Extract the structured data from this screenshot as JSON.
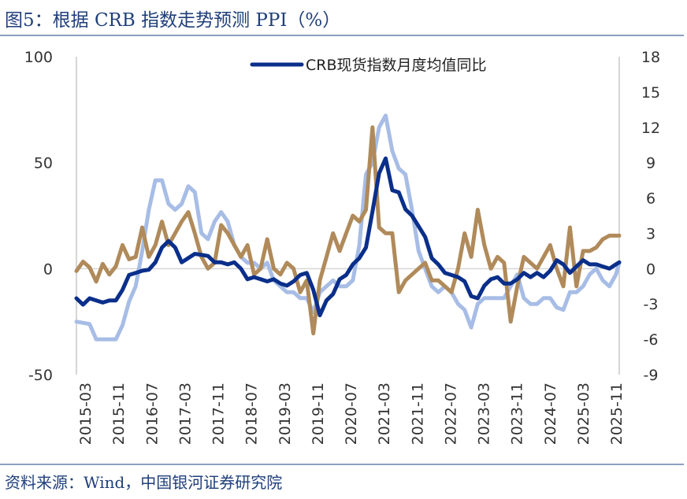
{
  "title": "图5：根据 CRB 指数走势预测 PPI（%）",
  "source": "资料来源：Wind，中国银河证券研究院",
  "colors": {
    "navy": "#0a2f8a",
    "lightblue": "#a7bde6",
    "tan": "#b08a5a",
    "axis": "#c8c8c8"
  },
  "chart_data": {
    "type": "line",
    "legend": [
      "CRB现货指数月度均值同比"
    ],
    "left_ylim": [
      -50,
      100
    ],
    "right_ylim": [
      -9,
      18
    ],
    "left_ticks": [
      "100",
      "50",
      "0",
      "-50"
    ],
    "right_ticks": [
      "18",
      "15",
      "12",
      "9",
      "6",
      "3",
      "0",
      "-3",
      "-6",
      "-9"
    ],
    "x_tick_labels": [
      "2015-03",
      "2015-11",
      "2016-07",
      "2017-03",
      "2017-11",
      "2018-07",
      "2019-03",
      "2019-11",
      "2020-07",
      "2021-03",
      "2021-11",
      "2022-07",
      "2023-03",
      "2023-11",
      "2024-07",
      "2025-03",
      "2025-11"
    ],
    "series": [
      {
        "name": "CRB现货指数月度均值同比",
        "axis": "left",
        "color": "#0a2f8a",
        "points": [
          [
            0,
            -14
          ],
          [
            2,
            -17
          ],
          [
            4,
            -14
          ],
          [
            8,
            -16
          ],
          [
            10,
            -15
          ],
          [
            12,
            -15
          ],
          [
            14,
            -10
          ],
          [
            16,
            -3
          ],
          [
            18,
            -2
          ],
          [
            20,
            -1
          ],
          [
            22,
            -0.5
          ],
          [
            24,
            3
          ],
          [
            26,
            10
          ],
          [
            28,
            13
          ],
          [
            30,
            10
          ],
          [
            32,
            3
          ],
          [
            34,
            5
          ],
          [
            36,
            7
          ],
          [
            40,
            6
          ],
          [
            42,
            3
          ],
          [
            44,
            3
          ],
          [
            46,
            2
          ],
          [
            48,
            3
          ],
          [
            50,
            0
          ],
          [
            52,
            -5
          ],
          [
            54,
            -4
          ],
          [
            56,
            -5
          ],
          [
            58,
            -6
          ],
          [
            60,
            -5
          ],
          [
            62,
            -7
          ],
          [
            64,
            -8
          ],
          [
            66,
            -6
          ],
          [
            68,
            -3
          ],
          [
            70,
            -2
          ],
          [
            72,
            -10
          ],
          [
            74,
            -22
          ],
          [
            76,
            -15
          ],
          [
            78,
            -12
          ],
          [
            80,
            -5
          ],
          [
            82,
            -3
          ],
          [
            84,
            2
          ],
          [
            86,
            5
          ],
          [
            88,
            10
          ],
          [
            90,
            27
          ],
          [
            92,
            45
          ],
          [
            94,
            52
          ],
          [
            96,
            37
          ],
          [
            98,
            36
          ],
          [
            100,
            28
          ],
          [
            102,
            25
          ],
          [
            104,
            20
          ],
          [
            106,
            15
          ],
          [
            108,
            5
          ],
          [
            110,
            2
          ],
          [
            112,
            -2
          ],
          [
            114,
            -3
          ],
          [
            116,
            -4
          ],
          [
            118,
            -6
          ],
          [
            120,
            -13
          ],
          [
            122,
            -14
          ],
          [
            124,
            -8
          ],
          [
            126,
            -5
          ],
          [
            128,
            -4
          ],
          [
            130,
            -7
          ],
          [
            132,
            -7
          ],
          [
            134,
            -5
          ],
          [
            136,
            -2
          ],
          [
            138,
            -4
          ],
          [
            140,
            -2
          ],
          [
            142,
            -4
          ],
          [
            144,
            -1
          ],
          [
            146,
            4
          ],
          [
            148,
            2
          ],
          [
            150,
            -2
          ],
          [
            152,
            1
          ],
          [
            154,
            4
          ],
          [
            156,
            2
          ],
          [
            158,
            2
          ],
          [
            160,
            1
          ],
          [
            162,
            0
          ],
          [
            164,
            2
          ],
          [
            165,
            3
          ]
        ]
      },
      {
        "name": "",
        "axis": "right",
        "color": "#a7bde6",
        "points": [
          [
            0,
            -4.5
          ],
          [
            4,
            -4.7
          ],
          [
            6,
            -6
          ],
          [
            10,
            -6
          ],
          [
            12,
            -6
          ],
          [
            14,
            -4.8
          ],
          [
            16,
            -2.8
          ],
          [
            18,
            -1.5
          ],
          [
            20,
            1.5
          ],
          [
            22,
            5
          ],
          [
            24,
            7.5
          ],
          [
            26,
            7.5
          ],
          [
            28,
            5.5
          ],
          [
            30,
            5
          ],
          [
            32,
            5.5
          ],
          [
            34,
            7
          ],
          [
            36,
            6.5
          ],
          [
            38,
            3
          ],
          [
            40,
            2.5
          ],
          [
            42,
            4
          ],
          [
            44,
            4.8
          ],
          [
            46,
            4
          ],
          [
            48,
            2
          ],
          [
            50,
            1
          ],
          [
            52,
            0.5
          ],
          [
            54,
            0.5
          ],
          [
            56,
            0
          ],
          [
            58,
            0.5
          ],
          [
            60,
            -1
          ],
          [
            62,
            -1.5
          ],
          [
            64,
            -2
          ],
          [
            66,
            -2
          ],
          [
            68,
            -2.5
          ],
          [
            70,
            -2.5
          ],
          [
            72,
            -3.7
          ],
          [
            74,
            -2
          ],
          [
            76,
            -1.5
          ],
          [
            78,
            -1
          ],
          [
            80,
            -1.5
          ],
          [
            82,
            -1.5
          ],
          [
            84,
            -1
          ],
          [
            86,
            2
          ],
          [
            88,
            8
          ],
          [
            90,
            9
          ],
          [
            92,
            12
          ],
          [
            94,
            13
          ],
          [
            96,
            10
          ],
          [
            98,
            8.5
          ],
          [
            100,
            8
          ],
          [
            102,
            5
          ],
          [
            104,
            1.5
          ],
          [
            106,
            0
          ],
          [
            108,
            -1.5
          ],
          [
            110,
            -2
          ],
          [
            112,
            -1.5
          ],
          [
            114,
            -2
          ],
          [
            116,
            -3
          ],
          [
            118,
            -3.5
          ],
          [
            120,
            -5
          ],
          [
            122,
            -3
          ],
          [
            124,
            -2.5
          ],
          [
            126,
            -2.5
          ],
          [
            128,
            -2.5
          ],
          [
            130,
            -2.5
          ],
          [
            132,
            -1.5
          ],
          [
            134,
            -0.5
          ],
          [
            136,
            -2.5
          ],
          [
            138,
            -3
          ],
          [
            140,
            -3
          ],
          [
            142,
            -2.5
          ],
          [
            144,
            -2.5
          ],
          [
            146,
            -3.3
          ],
          [
            148,
            -3.5
          ],
          [
            150,
            -2
          ],
          [
            152,
            -2
          ],
          [
            154,
            -1.5
          ],
          [
            156,
            -0.5
          ],
          [
            158,
            0
          ],
          [
            160,
            -1
          ],
          [
            162,
            -1.5
          ],
          [
            164,
            -0.5
          ],
          [
            165,
            0.5
          ]
        ]
      },
      {
        "name": "",
        "axis": "right",
        "color": "#b08a5a",
        "points": [
          [
            0,
            -0.2
          ],
          [
            2,
            0.6
          ],
          [
            4,
            0.1
          ],
          [
            6,
            -1.1
          ],
          [
            8,
            0.4
          ],
          [
            10,
            -0.5
          ],
          [
            12,
            0.2
          ],
          [
            14,
            2
          ],
          [
            16,
            0.8
          ],
          [
            18,
            1
          ],
          [
            20,
            3.5
          ],
          [
            22,
            1
          ],
          [
            24,
            2
          ],
          [
            26,
            4
          ],
          [
            28,
            2
          ],
          [
            30,
            3
          ],
          [
            32,
            4
          ],
          [
            34,
            4.8
          ],
          [
            36,
            3
          ],
          [
            38,
            1
          ],
          [
            40,
            0
          ],
          [
            42,
            0.5
          ],
          [
            44,
            3.7
          ],
          [
            46,
            3
          ],
          [
            48,
            2
          ],
          [
            50,
            1
          ],
          [
            52,
            2
          ],
          [
            54,
            -0.5
          ],
          [
            56,
            0
          ],
          [
            58,
            2.5
          ],
          [
            60,
            0
          ],
          [
            62,
            -0.5
          ],
          [
            64,
            0.5
          ],
          [
            66,
            0
          ],
          [
            68,
            -2
          ],
          [
            70,
            -1
          ],
          [
            72,
            -5.5
          ],
          [
            74,
            -1
          ],
          [
            76,
            1
          ],
          [
            78,
            3
          ],
          [
            80,
            1.5
          ],
          [
            82,
            3
          ],
          [
            84,
            4.5
          ],
          [
            86,
            4
          ],
          [
            88,
            5
          ],
          [
            90,
            12
          ],
          [
            92,
            3.5
          ],
          [
            94,
            3
          ],
          [
            96,
            3
          ],
          [
            98,
            -2
          ],
          [
            100,
            -1
          ],
          [
            102,
            -0.5
          ],
          [
            104,
            0
          ],
          [
            106,
            0.5
          ],
          [
            108,
            -1
          ],
          [
            110,
            -1
          ],
          [
            112,
            -1.5
          ],
          [
            114,
            -2
          ],
          [
            116,
            0
          ],
          [
            118,
            3
          ],
          [
            120,
            1
          ],
          [
            122,
            5
          ],
          [
            124,
            2
          ],
          [
            126,
            0
          ],
          [
            128,
            1
          ],
          [
            130,
            0.5
          ],
          [
            132,
            -4.5
          ],
          [
            134,
            -1.5
          ],
          [
            136,
            1
          ],
          [
            138,
            0.5
          ],
          [
            140,
            0
          ],
          [
            142,
            1
          ],
          [
            144,
            2
          ],
          [
            146,
            0
          ],
          [
            148,
            -1.5
          ],
          [
            150,
            3.5
          ],
          [
            152,
            -1.5
          ],
          [
            154,
            1.5
          ],
          [
            156,
            1.5
          ],
          [
            158,
            1.8
          ],
          [
            160,
            2.5
          ],
          [
            162,
            2.8
          ],
          [
            165,
            2.8
          ]
        ]
      }
    ]
  }
}
